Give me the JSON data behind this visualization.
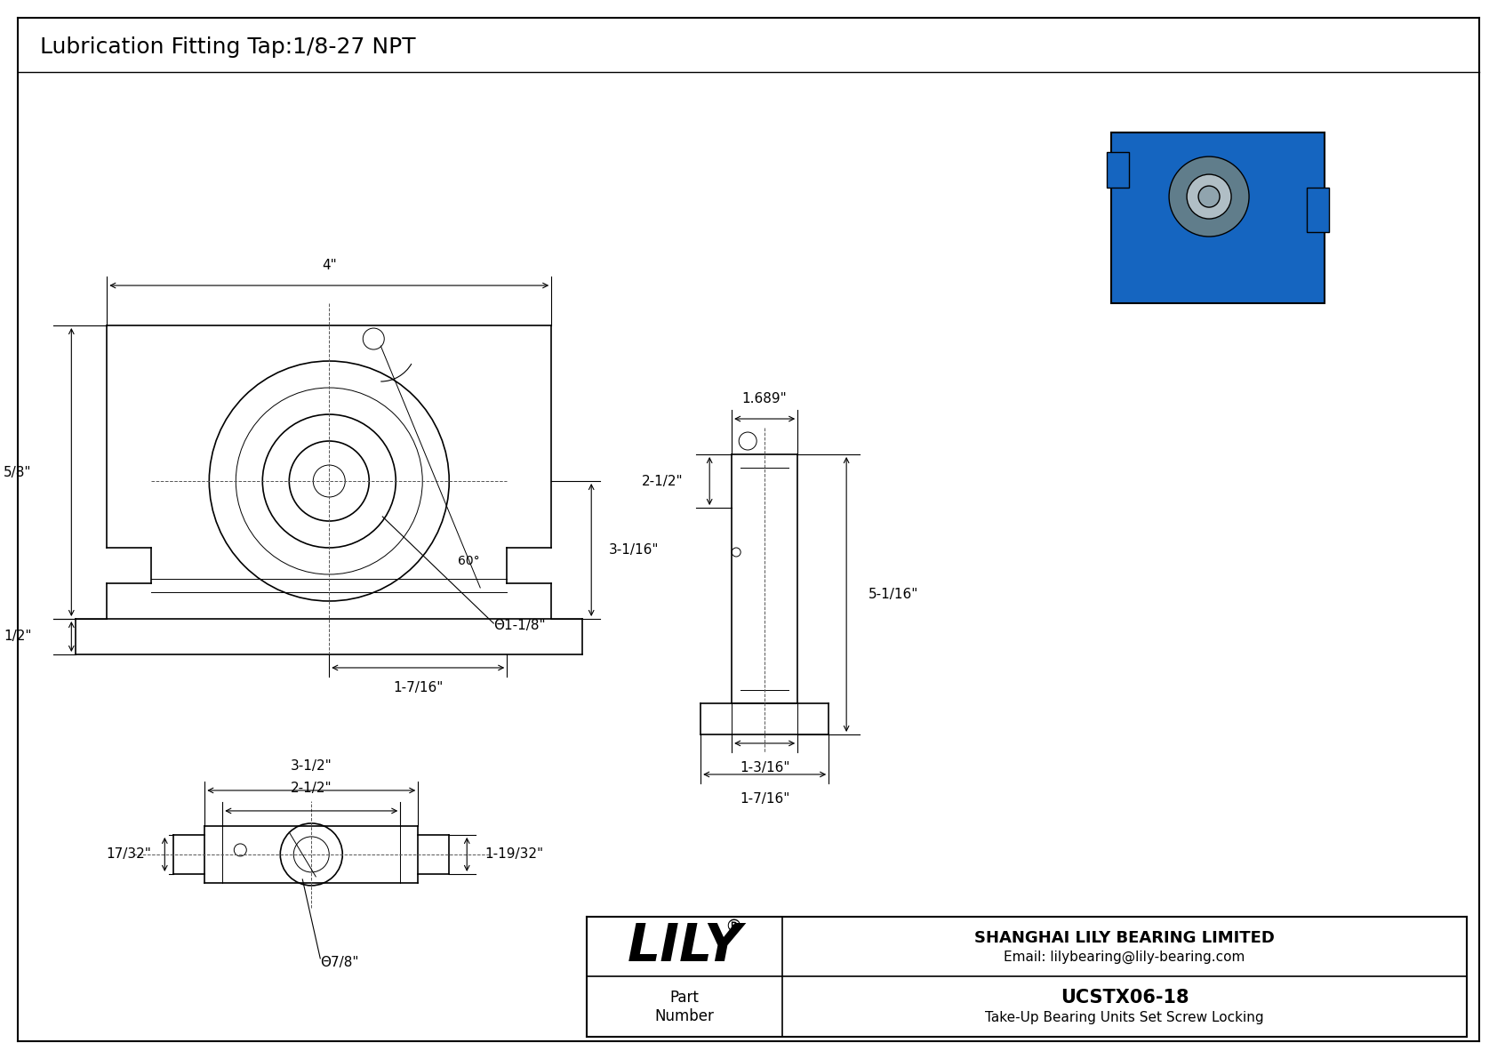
{
  "title": "Lubrication Fitting Tap:1/8-27 NPT",
  "bg_color": "#ffffff",
  "line_color": "#000000",
  "title_fontsize": 18,
  "dim_fontsize": 11,
  "company_name": "SHANGHAI LILY BEARING LIMITED",
  "company_email": "Email: lilybearing@lily-bearing.com",
  "part_label": "Part\nNumber",
  "part_number": "UCSTX06-18",
  "part_desc": "Take-Up Bearing Units Set Screw Locking",
  "lily_text": "LILY",
  "dimensions": {
    "front_width": "4\"",
    "front_height_5_8": "5/8\"",
    "front_height_half": "1/2\"",
    "front_dim_3_16": "3-1/16\"",
    "front_dim_1_7_16": "1-7/16\"",
    "front_dia_1_1_8": "Θ1-1/8\"",
    "front_angle": "60°",
    "side_width_1689": "1.689\"",
    "side_height_2_half": "2-1/2\"",
    "side_height_5_16": "5-1/16\"",
    "side_width_1_3_16": "1-3/16\"",
    "side_width_1_7_16": "1-7/16\"",
    "bot_width_3_half": "3-1/2\"",
    "bot_width_2_half": "2-1/2\"",
    "bot_height_1_19_32": "1-19/32\"",
    "bot_width_17_32": "17/32\"",
    "bot_dia_7_8": "Θ7/8\""
  }
}
